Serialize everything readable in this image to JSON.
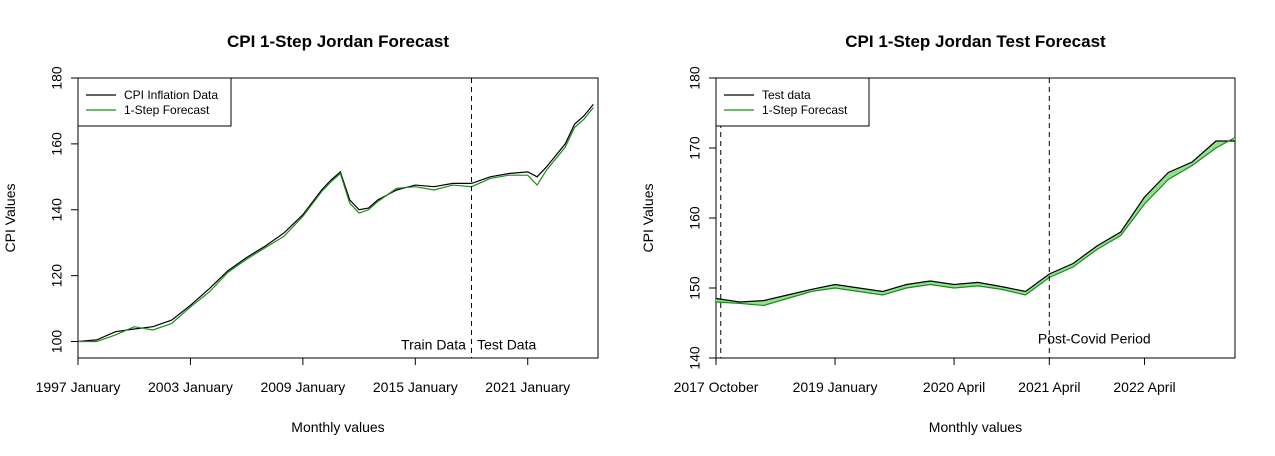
{
  "chart_data": [
    {
      "type": "line",
      "title": "CPI 1-Step Jordan Forecast",
      "xlabel": "Monthly values",
      "ylabel": "CPI Values",
      "xlim": [
        1997.0,
        2024.75
      ],
      "ylim": [
        95,
        180
      ],
      "x_ticks": [
        {
          "x": 1997.0,
          "label": "1997 January"
        },
        {
          "x": 2003.0,
          "label": "2003 January"
        },
        {
          "x": 2009.0,
          "label": "2009 January"
        },
        {
          "x": 2015.0,
          "label": "2015 January"
        },
        {
          "x": 2021.0,
          "label": "2021 January"
        }
      ],
      "y_ticks": [
        100,
        120,
        140,
        160,
        180
      ],
      "grid": false,
      "legend": {
        "position": "top-left",
        "entries": [
          {
            "label": "CPI Inflation Data",
            "color": "#000000"
          },
          {
            "label": "1-Step Forecast",
            "color": "#1a8c1a"
          }
        ]
      },
      "vline_x": 2018.0,
      "annotations": [
        {
          "text": "Train Data",
          "x": 2017.7,
          "y": 97,
          "anchor": "end"
        },
        {
          "text": "Test Data",
          "x": 2018.3,
          "y": 97,
          "anchor": "start"
        }
      ],
      "series": [
        {
          "name": "CPI Inflation Data",
          "color": "#000000",
          "values": [
            [
              1997.0,
              100.0
            ],
            [
              1998.0,
              100.5
            ],
            [
              1999.0,
              103.0
            ],
            [
              2000.0,
              103.8
            ],
            [
              2001.0,
              104.5
            ],
            [
              2002.0,
              106.5
            ],
            [
              2003.0,
              111.0
            ],
            [
              2004.0,
              116.0
            ],
            [
              2005.0,
              121.5
            ],
            [
              2006.0,
              125.5
            ],
            [
              2007.0,
              129.0
            ],
            [
              2008.0,
              133.0
            ],
            [
              2009.0,
              138.5
            ],
            [
              2010.0,
              146.0
            ],
            [
              2010.5,
              149.0
            ],
            [
              2011.0,
              151.5
            ],
            [
              2011.5,
              143.0
            ],
            [
              2012.0,
              140.0
            ],
            [
              2012.5,
              140.5
            ],
            [
              2013.0,
              143.0
            ],
            [
              2014.0,
              146.0
            ],
            [
              2015.0,
              147.5
            ],
            [
              2016.0,
              147.0
            ],
            [
              2017.0,
              148.0
            ],
            [
              2018.0,
              148.0
            ],
            [
              2019.0,
              150.0
            ],
            [
              2020.0,
              151.0
            ],
            [
              2021.0,
              151.5
            ],
            [
              2021.5,
              150.0
            ],
            [
              2022.0,
              153.0
            ],
            [
              2023.0,
              160.0
            ],
            [
              2023.5,
              166.0
            ],
            [
              2024.0,
              168.5
            ],
            [
              2024.5,
              172.0
            ]
          ]
        },
        {
          "name": "1-Step Forecast",
          "color": "#1a8c1a",
          "values": [
            [
              1997.0,
              100.0
            ],
            [
              1998.0,
              100.0
            ],
            [
              1999.0,
              102.0
            ],
            [
              2000.0,
              104.5
            ],
            [
              2001.0,
              103.5
            ],
            [
              2002.0,
              105.5
            ],
            [
              2003.0,
              110.5
            ],
            [
              2004.0,
              115.0
            ],
            [
              2005.0,
              121.0
            ],
            [
              2006.0,
              125.0
            ],
            [
              2007.0,
              128.5
            ],
            [
              2008.0,
              132.0
            ],
            [
              2009.0,
              138.0
            ],
            [
              2010.0,
              145.5
            ],
            [
              2010.5,
              148.5
            ],
            [
              2011.0,
              151.0
            ],
            [
              2011.5,
              142.0
            ],
            [
              2012.0,
              139.0
            ],
            [
              2012.5,
              140.0
            ],
            [
              2013.0,
              142.5
            ],
            [
              2014.0,
              146.5
            ],
            [
              2015.0,
              147.0
            ],
            [
              2016.0,
              146.0
            ],
            [
              2017.0,
              147.5
            ],
            [
              2018.0,
              147.0
            ],
            [
              2019.0,
              149.5
            ],
            [
              2020.0,
              150.5
            ],
            [
              2021.0,
              150.5
            ],
            [
              2021.5,
              147.5
            ],
            [
              2022.0,
              152.0
            ],
            [
              2023.0,
              159.0
            ],
            [
              2023.5,
              165.0
            ],
            [
              2024.0,
              167.5
            ],
            [
              2024.5,
              171.0
            ]
          ]
        }
      ]
    },
    {
      "type": "line",
      "title": "CPI 1-Step Jordan Test Forecast",
      "xlabel": "Monthly values",
      "ylabel": "CPI Values",
      "xlim": [
        2017.75,
        2023.2
      ],
      "ylim": [
        140,
        180
      ],
      "x_ticks": [
        {
          "x": 2017.75,
          "label": "2017 October"
        },
        {
          "x": 2019.0,
          "label": "2019 January"
        },
        {
          "x": 2020.25,
          "label": "2020 April"
        },
        {
          "x": 2021.25,
          "label": "2021 April"
        },
        {
          "x": 2022.25,
          "label": "2022 April"
        }
      ],
      "y_ticks": [
        140,
        150,
        160,
        170,
        180
      ],
      "grid": false,
      "legend": {
        "position": "top-left",
        "entries": [
          {
            "label": "Test data",
            "color": "#000000"
          },
          {
            "label": "1-Step Forecast",
            "color": "#1a8c1a"
          }
        ]
      },
      "vlines_x": [
        2017.8,
        2021.25
      ],
      "annotations": [
        {
          "text": "Post-Covid Period",
          "x": 2221.25,
          "y": 141.8,
          "anchor": "middle"
        }
      ],
      "forecast_band_color": "#90e090",
      "series": [
        {
          "name": "Test data",
          "color": "#000000",
          "values": [
            [
              2017.75,
              148.5
            ],
            [
              2018.0,
              148.0
            ],
            [
              2018.25,
              148.2
            ],
            [
              2018.5,
              149.0
            ],
            [
              2018.75,
              149.8
            ],
            [
              2019.0,
              150.5
            ],
            [
              2019.25,
              150.0
            ],
            [
              2019.5,
              149.5
            ],
            [
              2019.75,
              150.5
            ],
            [
              2020.0,
              151.0
            ],
            [
              2020.25,
              150.5
            ],
            [
              2020.5,
              150.8
            ],
            [
              2020.75,
              150.2
            ],
            [
              2021.0,
              149.5
            ],
            [
              2021.25,
              152.0
            ],
            [
              2021.5,
              153.5
            ],
            [
              2021.75,
              156.0
            ],
            [
              2022.0,
              158.0
            ],
            [
              2022.25,
              163.0
            ],
            [
              2022.5,
              166.5
            ],
            [
              2022.75,
              168.0
            ],
            [
              2023.0,
              171.0
            ],
            [
              2023.2,
              171.0
            ]
          ]
        },
        {
          "name": "1-Step Forecast",
          "color": "#1a8c1a",
          "values": [
            [
              2017.75,
              148.0
            ],
            [
              2018.0,
              147.8
            ],
            [
              2018.25,
              147.5
            ],
            [
              2018.5,
              148.5
            ],
            [
              2018.75,
              149.5
            ],
            [
              2019.0,
              150.0
            ],
            [
              2019.25,
              149.5
            ],
            [
              2019.5,
              149.0
            ],
            [
              2019.75,
              150.0
            ],
            [
              2020.0,
              150.5
            ],
            [
              2020.25,
              150.0
            ],
            [
              2020.5,
              150.3
            ],
            [
              2020.75,
              149.8
            ],
            [
              2021.0,
              149.0
            ],
            [
              2021.25,
              151.5
            ],
            [
              2021.5,
              153.0
            ],
            [
              2021.75,
              155.5
            ],
            [
              2022.0,
              157.5
            ],
            [
              2022.25,
              162.0
            ],
            [
              2022.5,
              165.5
            ],
            [
              2022.75,
              167.5
            ],
            [
              2023.0,
              170.0
            ],
            [
              2023.2,
              171.5
            ]
          ]
        }
      ]
    }
  ]
}
